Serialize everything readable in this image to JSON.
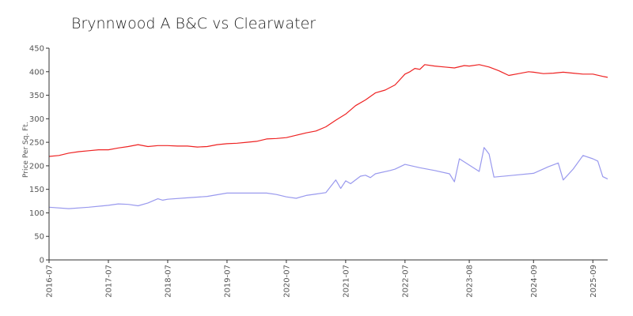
{
  "chart_data": {
    "type": "line",
    "title": "Brynnwood A B&C vs Clearwater",
    "ylabel": "Price Per Sq. Ft.",
    "xlabel": "",
    "ylim": [
      0,
      450
    ],
    "yticks": [
      0,
      50,
      100,
      150,
      200,
      250,
      300,
      350,
      400,
      450
    ],
    "xlim": [
      "2016-07",
      "2025-12"
    ],
    "xticks": [
      "2016-07",
      "2017-07",
      "2018-07",
      "2019-07",
      "2020-07",
      "2021-07",
      "2022-07",
      "2023-08",
      "2024-09",
      "2025-09"
    ],
    "grid": false,
    "series": [
      {
        "name": "",
        "color": "#ee2222",
        "points": [
          [
            "2016-07",
            220
          ],
          [
            "2016-09",
            222
          ],
          [
            "2016-11",
            227
          ],
          [
            "2017-01",
            230
          ],
          [
            "2017-03",
            232
          ],
          [
            "2017-05",
            234
          ],
          [
            "2017-07",
            234
          ],
          [
            "2017-09",
            238
          ],
          [
            "2017-11",
            241
          ],
          [
            "2018-01",
            245
          ],
          [
            "2018-03",
            241
          ],
          [
            "2018-05",
            243
          ],
          [
            "2018-07",
            243
          ],
          [
            "2018-09",
            242
          ],
          [
            "2018-11",
            242
          ],
          [
            "2019-01",
            240
          ],
          [
            "2019-03",
            241
          ],
          [
            "2019-05",
            245
          ],
          [
            "2019-07",
            247
          ],
          [
            "2019-09",
            248
          ],
          [
            "2019-11",
            250
          ],
          [
            "2020-01",
            252
          ],
          [
            "2020-03",
            257
          ],
          [
            "2020-05",
            258
          ],
          [
            "2020-07",
            260
          ],
          [
            "2020-09",
            265
          ],
          [
            "2020-11",
            270
          ],
          [
            "2021-01",
            274
          ],
          [
            "2021-03",
            283
          ],
          [
            "2021-05",
            297
          ],
          [
            "2021-07",
            310
          ],
          [
            "2021-09",
            328
          ],
          [
            "2021-11",
            340
          ],
          [
            "2022-01",
            355
          ],
          [
            "2022-03",
            361
          ],
          [
            "2022-05",
            372
          ],
          [
            "2022-07",
            395
          ],
          [
            "2022-08",
            400
          ],
          [
            "2022-09",
            407
          ],
          [
            "2022-10",
            405
          ],
          [
            "2022-11",
            415
          ],
          [
            "2023-01",
            412
          ],
          [
            "2023-03",
            410
          ],
          [
            "2023-05",
            408
          ],
          [
            "2023-07",
            413
          ],
          [
            "2023-08",
            412
          ],
          [
            "2023-10",
            415
          ],
          [
            "2023-12",
            410
          ],
          [
            "2024-02",
            402
          ],
          [
            "2024-04",
            392
          ],
          [
            "2024-06",
            396
          ],
          [
            "2024-08",
            400
          ],
          [
            "2024-09",
            399
          ],
          [
            "2024-11",
            396
          ],
          [
            "2025-01",
            397
          ],
          [
            "2025-03",
            399
          ],
          [
            "2025-05",
            397
          ],
          [
            "2025-07",
            395
          ],
          [
            "2025-09",
            395
          ],
          [
            "2025-11",
            390
          ],
          [
            "2025-12",
            388
          ]
        ]
      },
      {
        "name": "",
        "color": "#9999ee",
        "points": [
          [
            "2016-07",
            112
          ],
          [
            "2016-11",
            109
          ],
          [
            "2017-03",
            112
          ],
          [
            "2017-07",
            116
          ],
          [
            "2017-09",
            119
          ],
          [
            "2017-11",
            118
          ],
          [
            "2018-01",
            115
          ],
          [
            "2018-03",
            121
          ],
          [
            "2018-05",
            130
          ],
          [
            "2018-06",
            127
          ],
          [
            "2018-07",
            129
          ],
          [
            "2018-11",
            132
          ],
          [
            "2019-03",
            135
          ],
          [
            "2019-07",
            142
          ],
          [
            "2019-11",
            142
          ],
          [
            "2020-03",
            142
          ],
          [
            "2020-05",
            139
          ],
          [
            "2020-07",
            134
          ],
          [
            "2020-09",
            131
          ],
          [
            "2020-11",
            137
          ],
          [
            "2021-01",
            140
          ],
          [
            "2021-03",
            143
          ],
          [
            "2021-05",
            170
          ],
          [
            "2021-06",
            152
          ],
          [
            "2021-07",
            168
          ],
          [
            "2021-08",
            162
          ],
          [
            "2021-10",
            178
          ],
          [
            "2021-11",
            180
          ],
          [
            "2021-12",
            175
          ],
          [
            "2022-01",
            183
          ],
          [
            "2022-04",
            190
          ],
          [
            "2022-05",
            193
          ],
          [
            "2022-07",
            203
          ],
          [
            "2022-10",
            196
          ],
          [
            "2023-01",
            190
          ],
          [
            "2023-04",
            183
          ],
          [
            "2023-05",
            166
          ],
          [
            "2023-06",
            215
          ],
          [
            "2023-10",
            188
          ],
          [
            "2023-11",
            239
          ],
          [
            "2023-12",
            225
          ],
          [
            "2024-01",
            176
          ],
          [
            "2024-05",
            180
          ],
          [
            "2024-09",
            184
          ],
          [
            "2024-12",
            198
          ],
          [
            "2025-02",
            206
          ],
          [
            "2025-03",
            170
          ],
          [
            "2025-05",
            193
          ],
          [
            "2025-07",
            222
          ],
          [
            "2025-09",
            215
          ],
          [
            "2025-10",
            210
          ],
          [
            "2025-11",
            177
          ],
          [
            "2025-12",
            172
          ]
        ]
      }
    ]
  }
}
